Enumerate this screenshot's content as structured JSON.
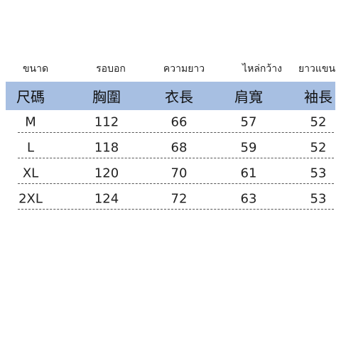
{
  "header": {
    "thai": [
      "ขนาด",
      "รอบอก",
      "ความยาว",
      "ไหล่กว้าง",
      "ยาวแขน"
    ],
    "chinese": [
      "尺碼",
      "胸圍",
      "衣長",
      "肩寬",
      "袖長"
    ]
  },
  "table": {
    "rows": [
      [
        "M",
        112,
        66,
        57,
        52
      ],
      [
        "L",
        118,
        68,
        59,
        52
      ],
      [
        "XL",
        120,
        70,
        61,
        53
      ],
      [
        "2XL",
        124,
        72,
        63,
        53
      ]
    ]
  }
}
